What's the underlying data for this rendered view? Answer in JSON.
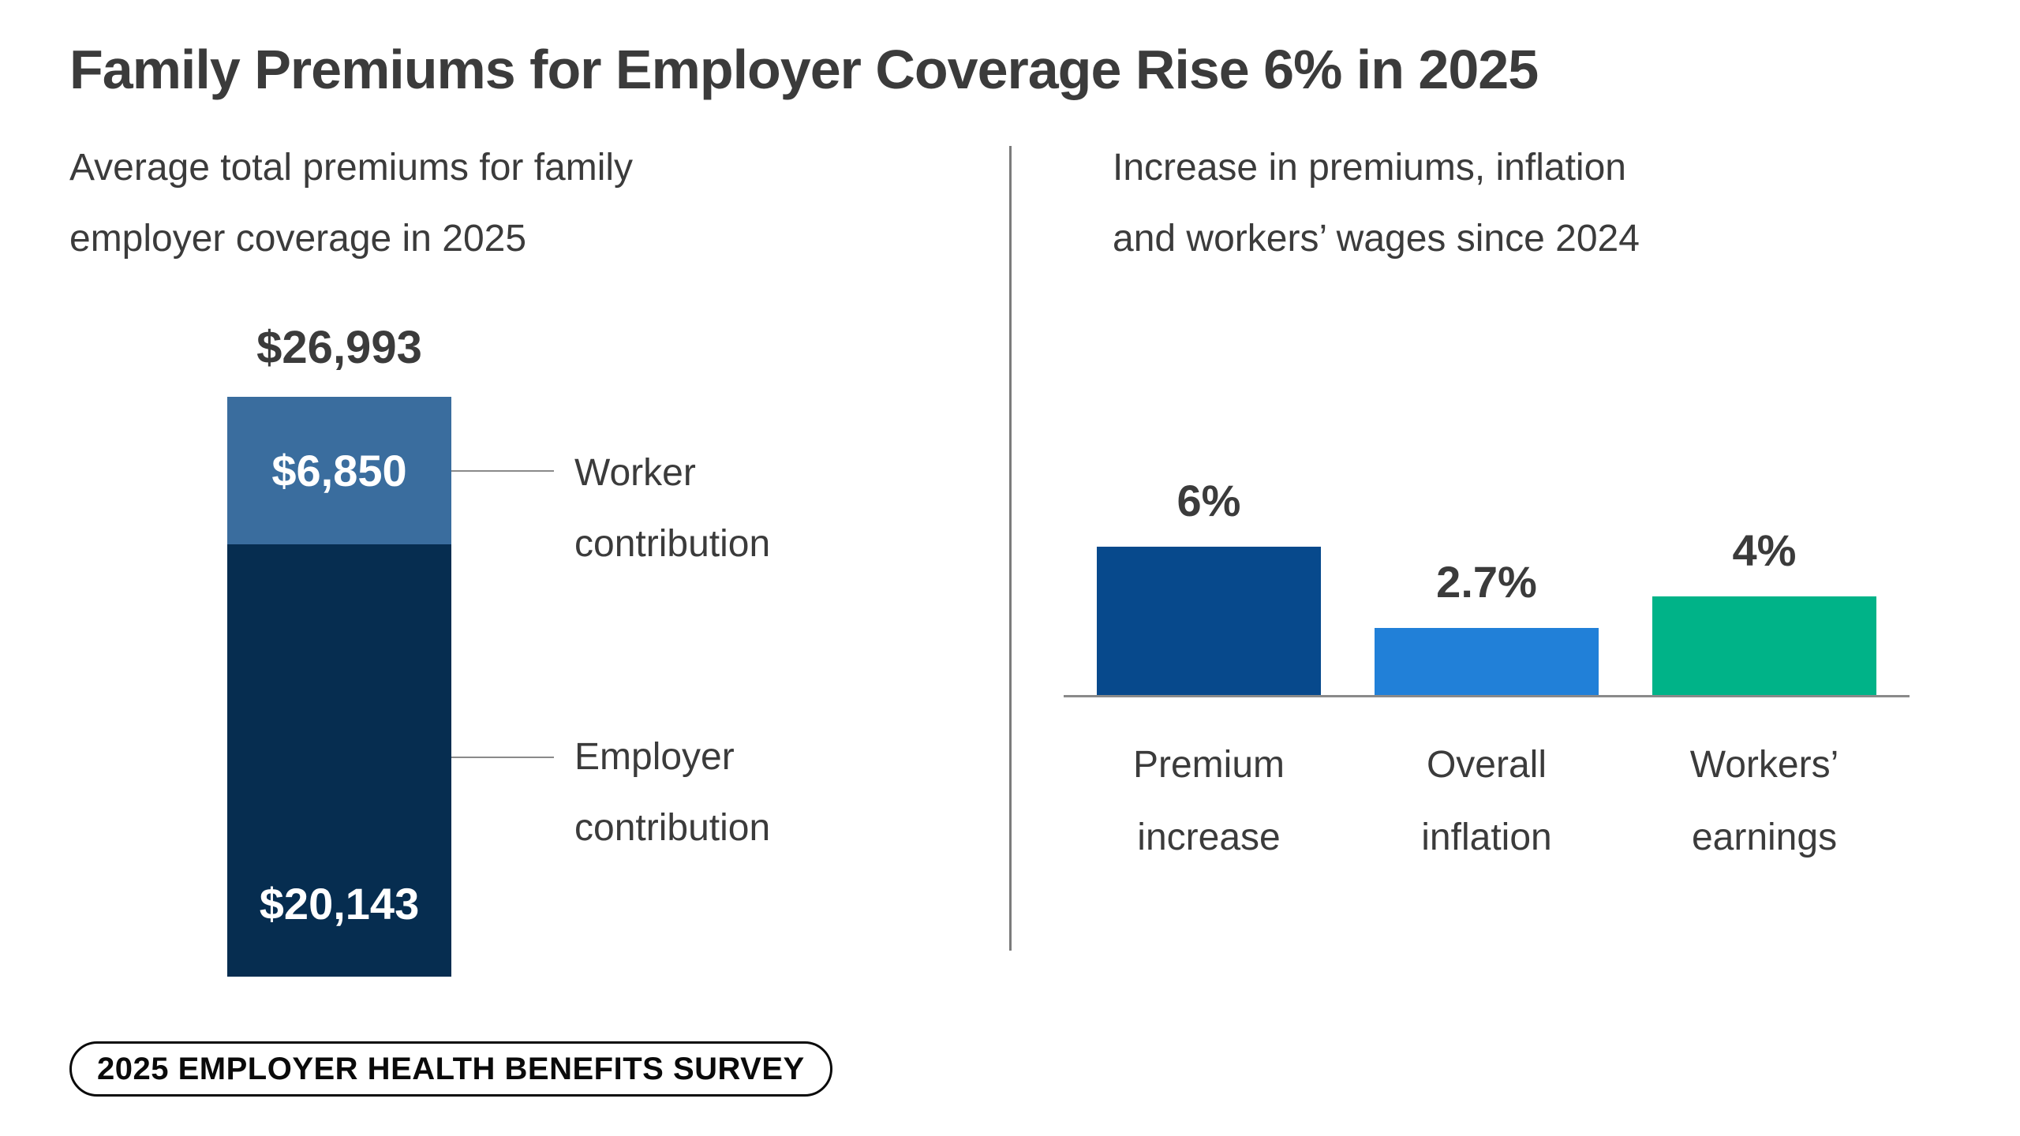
{
  "title": "Family Premiums for Employer Coverage Rise 6% in 2025",
  "left_panel": {
    "subtitle_line1": "Average total premiums for family",
    "subtitle_line2": "employer coverage in 2025",
    "total_label": "$26,993",
    "worker": {
      "value_label": "$6,850",
      "label_line1": "Worker",
      "label_line2": "contribution",
      "color": "#3A6D9E"
    },
    "employer": {
      "value_label": "$20,143",
      "label_line1": "Employer",
      "label_line2": "contribution",
      "color": "#062D50"
    }
  },
  "right_panel": {
    "subtitle_line1": "Increase in premiums, inflation",
    "subtitle_line2": "and workers’ wages since 2024",
    "bars": [
      {
        "value": 6,
        "value_label": "6%",
        "label_line1": "Premium",
        "label_line2": "increase",
        "color": "#07498C"
      },
      {
        "value": 2.7,
        "value_label": "2.7%",
        "label_line1": "Overall",
        "label_line2": "inflation",
        "color": "#2180D8"
      },
      {
        "value": 4,
        "value_label": "4%",
        "label_line1": "Workers’",
        "label_line2": "earnings",
        "color": "#00B388"
      }
    ]
  },
  "footer_badge": "2025 EMPLOYER HEALTH BENEFITS SURVEY",
  "colors": {
    "text": "#3B3B3B",
    "divider": "#7B7B7B",
    "baseline": "#8A8A8A",
    "value_text_on_bar": "#FFFFFF"
  },
  "chart_data": [
    {
      "type": "bar",
      "variant": "stacked-single-column",
      "title": "Average total premiums for family employer coverage in 2025",
      "categories": [
        "Family employer coverage, 2025"
      ],
      "series": [
        {
          "name": "Worker contribution",
          "values": [
            6850
          ],
          "color": "#3A6D9E"
        },
        {
          "name": "Employer contribution",
          "values": [
            20143
          ],
          "color": "#062D50"
        }
      ],
      "total": 26993,
      "unit": "USD",
      "data_labels": [
        "$26,993",
        "$6,850",
        "$20,143"
      ],
      "grid": false,
      "legend": "right-side callout labels"
    },
    {
      "type": "bar",
      "title": "Increase in premiums, inflation and workers’ wages since 2024",
      "categories": [
        "Premium increase",
        "Overall inflation",
        "Workers’ earnings"
      ],
      "values": [
        6,
        2.7,
        4
      ],
      "data_labels": [
        "6%",
        "2.7%",
        "4%"
      ],
      "colors": [
        "#07498C",
        "#2180D8",
        "#00B388"
      ],
      "unit": "percent",
      "xlabel": "",
      "ylabel": "",
      "ylim": [
        0,
        6.5
      ],
      "grid": false,
      "legend": "none"
    }
  ]
}
